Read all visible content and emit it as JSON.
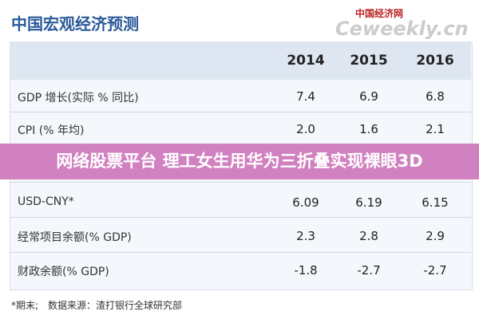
{
  "header": {
    "title": "中国宏观经济预测",
    "logo": "中国经济网",
    "logo_site": "Ceweekly.cn"
  },
  "table": {
    "columns": [
      "2014",
      "2015",
      "2016"
    ],
    "rows": [
      [
        "GDP 增长(实际 % 同比)",
        "7.4",
        "6.9",
        "6.8"
      ],
      [
        "CPI (% 年均)",
        "2.0",
        "1.6",
        "2.1"
      ],
      [
        "USD-CNY*",
        "6.09",
        "6.19",
        "6.15"
      ],
      [
        "经常项目余额(% GDP)",
        "2.3",
        "2.8",
        "2.9"
      ],
      [
        "财政余额(% GDP)",
        "-1.8",
        "-2.7",
        "-2.7"
      ]
    ]
  },
  "banner": "网络股票平台 理工女生用华为三折叠实现裸眼3D",
  "footnote": "*期末;　数据来源：渣打银行全球研究部"
}
